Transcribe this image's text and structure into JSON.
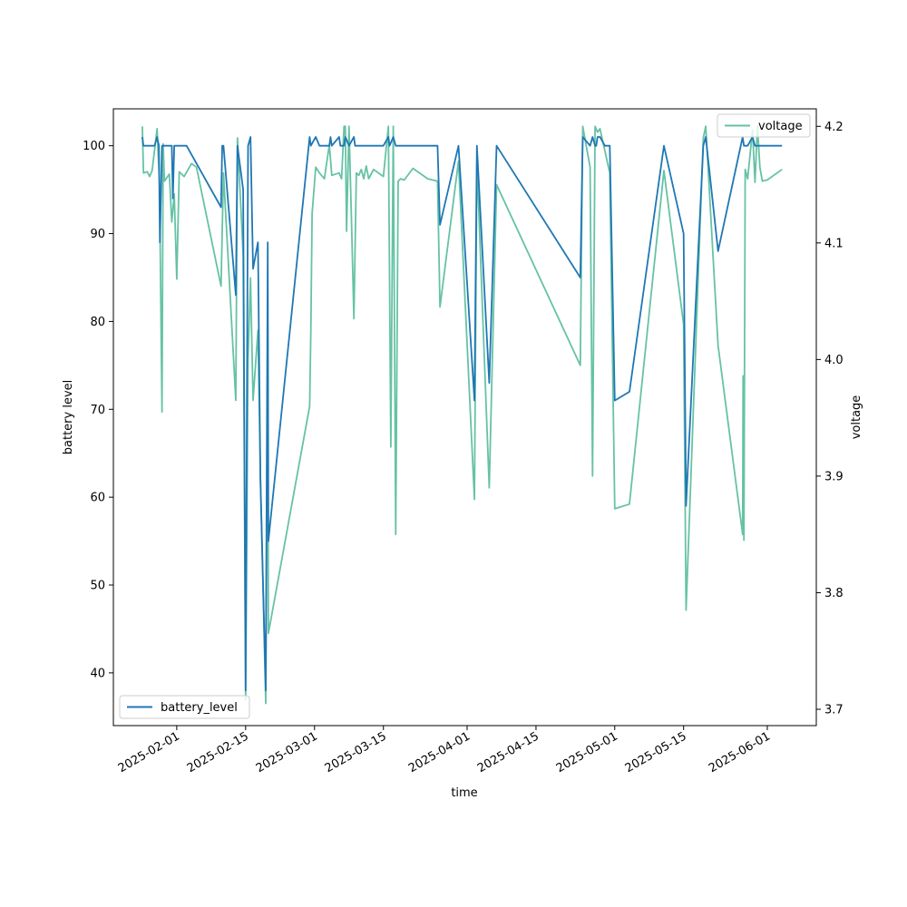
{
  "chart_data": {
    "type": "line",
    "xlabel": "time",
    "ylabel_left": "battery level",
    "ylabel_right": "voltage",
    "x_ticks": [
      "2025-02-01",
      "2025-02-15",
      "2025-03-01",
      "2025-03-15",
      "2025-04-01",
      "2025-04-15",
      "2025-05-01",
      "2025-05-15",
      "2025-06-01"
    ],
    "ylim_left": [
      34,
      104.2
    ],
    "yticks_left": [
      40,
      50,
      60,
      70,
      80,
      90,
      100
    ],
    "ylim_right": [
      3.686,
      4.215
    ],
    "yticks_right": [
      3.7,
      3.8,
      3.9,
      4.0,
      4.1,
      4.2
    ],
    "xlim": [
      "2025-01-19T03:00",
      "2025-06-10T23:00"
    ],
    "grid": false,
    "series": [
      {
        "name": "battery_level",
        "axis": "left",
        "color": "#1f77b4",
        "legend_position": "lower-left",
        "points": [
          [
            "2025-01-25T00:00",
            101
          ],
          [
            "2025-01-25T06:00",
            100
          ],
          [
            "2025-01-26T00:00",
            100
          ],
          [
            "2025-01-27T12:00",
            100
          ],
          [
            "2025-01-28T00:00",
            101
          ],
          [
            "2025-01-28T09:00",
            100
          ],
          [
            "2025-01-28T14:00",
            89
          ],
          [
            "2025-01-29T00:00",
            100
          ],
          [
            "2025-01-30T00:00",
            100
          ],
          [
            "2025-01-31T00:00",
            100
          ],
          [
            "2025-01-31T05:00",
            94
          ],
          [
            "2025-01-31T12:00",
            100
          ],
          [
            "2025-02-02T00:00",
            100
          ],
          [
            "2025-02-02T00:00",
            100
          ],
          [
            "2025-02-03T00:00",
            100
          ],
          [
            "2025-02-10T00:00",
            93
          ],
          [
            "2025-02-10T06:00",
            100
          ],
          [
            "2025-02-10T12:00",
            100
          ],
          [
            "2025-02-13T00:00",
            83
          ],
          [
            "2025-02-13T08:00",
            100
          ],
          [
            "2025-02-14T12:00",
            95
          ],
          [
            "2025-02-15T00:00",
            38
          ],
          [
            "2025-02-15T12:00",
            100
          ],
          [
            "2025-02-16T00:00",
            101
          ],
          [
            "2025-02-16T12:00",
            86
          ],
          [
            "2025-02-17T12:00",
            89
          ],
          [
            "2025-02-18T00:00",
            62
          ],
          [
            "2025-02-19T02:00",
            38
          ],
          [
            "2025-02-19T12:00",
            89
          ],
          [
            "2025-02-19T15:00",
            55
          ],
          [
            "2025-02-28T00:00",
            101
          ],
          [
            "2025-02-28T06:00",
            100
          ],
          [
            "2025-03-01T06:00",
            101
          ],
          [
            "2025-03-02T00:00",
            100
          ],
          [
            "2025-03-04T00:00",
            100
          ],
          [
            "2025-03-04T06:00",
            101
          ],
          [
            "2025-03-04T12:00",
            100
          ],
          [
            "2025-03-06T00:00",
            101
          ],
          [
            "2025-03-06T06:00",
            100
          ],
          [
            "2025-03-07T00:00",
            100
          ],
          [
            "2025-03-07T06:00",
            101
          ],
          [
            "2025-03-08T00:00",
            100
          ],
          [
            "2025-03-09T00:00",
            101
          ],
          [
            "2025-03-09T06:00",
            100
          ],
          [
            "2025-03-12T00:00",
            100
          ],
          [
            "2025-03-15T00:00",
            100
          ],
          [
            "2025-03-16T00:00",
            101
          ],
          [
            "2025-03-16T06:00",
            100
          ],
          [
            "2025-03-17T00:00",
            101
          ],
          [
            "2025-03-17T12:00",
            100
          ],
          [
            "2025-03-18T00:00",
            100
          ],
          [
            "2025-03-26T00:00",
            100
          ],
          [
            "2025-03-26T12:00",
            91
          ],
          [
            "2025-03-30T06:00",
            100
          ],
          [
            "2025-04-02T12:00",
            71
          ],
          [
            "2025-04-03T00:00",
            100
          ],
          [
            "2025-04-05T12:00",
            73
          ],
          [
            "2025-04-07T00:00",
            100
          ],
          [
            "2025-04-24T00:00",
            85
          ],
          [
            "2025-04-24T12:00",
            101
          ],
          [
            "2025-04-26T00:00",
            100
          ],
          [
            "2025-04-26T12:00",
            101
          ],
          [
            "2025-04-27T00:00",
            100
          ],
          [
            "2025-04-27T06:00",
            100
          ],
          [
            "2025-04-27T12:00",
            101
          ],
          [
            "2025-04-28T00:00",
            101
          ],
          [
            "2025-04-29T00:00",
            100
          ],
          [
            "2025-04-30T00:00",
            100
          ],
          [
            "2025-05-01T00:00",
            71
          ],
          [
            "2025-05-04T00:00",
            72
          ],
          [
            "2025-05-11T00:00",
            100
          ],
          [
            "2025-05-15T00:00",
            90
          ],
          [
            "2025-05-15T12:00",
            59
          ],
          [
            "2025-05-19T00:00",
            100
          ],
          [
            "2025-05-19T12:00",
            101
          ],
          [
            "2025-05-22T00:00",
            88
          ],
          [
            "2025-05-27T00:00",
            101
          ],
          [
            "2025-05-27T06:00",
            100
          ],
          [
            "2025-05-28T00:00",
            100
          ],
          [
            "2025-05-29T00:00",
            101
          ],
          [
            "2025-05-29T12:00",
            100
          ],
          [
            "2025-05-30T00:00",
            100
          ],
          [
            "2025-06-04T00:00",
            100
          ]
        ]
      },
      {
        "name": "voltage",
        "axis": "right",
        "color": "#66c2a5",
        "legend_position": "upper-right",
        "points": [
          [
            "2025-01-25T00:00",
            4.2
          ],
          [
            "2025-01-25T06:00",
            4.16
          ],
          [
            "2025-01-26T00:00",
            4.161
          ],
          [
            "2025-01-26T12:00",
            4.157
          ],
          [
            "2025-01-27T00:00",
            4.162
          ],
          [
            "2025-01-28T00:00",
            4.198
          ],
          [
            "2025-01-28T12:00",
            4.15
          ],
          [
            "2025-01-29T00:00",
            3.955
          ],
          [
            "2025-01-29T06:00",
            4.185
          ],
          [
            "2025-01-29T12:00",
            4.153
          ],
          [
            "2025-01-30T00:00",
            4.156
          ],
          [
            "2025-01-30T12:00",
            4.159
          ],
          [
            "2025-01-31T00:00",
            4.118
          ],
          [
            "2025-01-31T12:00",
            4.142
          ],
          [
            "2025-02-01T00:00",
            4.069
          ],
          [
            "2025-02-01T12:00",
            4.161
          ],
          [
            "2025-02-02T12:00",
            4.157
          ],
          [
            "2025-02-04T00:00",
            4.168
          ],
          [
            "2025-02-05T00:00",
            4.165
          ],
          [
            "2025-02-10T00:00",
            4.063
          ],
          [
            "2025-02-10T12:00",
            4.16
          ],
          [
            "2025-02-13T00:00",
            3.965
          ],
          [
            "2025-02-13T08:00",
            4.19
          ],
          [
            "2025-02-14T12:00",
            4.09
          ],
          [
            "2025-02-15T00:00",
            3.708
          ],
          [
            "2025-02-15T12:00",
            4.0
          ],
          [
            "2025-02-16T00:00",
            4.07
          ],
          [
            "2025-02-16T12:00",
            3.965
          ],
          [
            "2025-02-17T12:00",
            4.025
          ],
          [
            "2025-02-18T00:00",
            3.9
          ],
          [
            "2025-02-19T02:00",
            3.705
          ],
          [
            "2025-02-19T12:00",
            4.03
          ],
          [
            "2025-02-19T15:00",
            3.765
          ],
          [
            "2025-02-28T00:00",
            3.96
          ],
          [
            "2025-02-28T06:00",
            4.024
          ],
          [
            "2025-02-28T12:00",
            4.125
          ],
          [
            "2025-03-01T06:00",
            4.165
          ],
          [
            "2025-03-02T00:00",
            4.16
          ],
          [
            "2025-03-03T00:00",
            4.155
          ],
          [
            "2025-03-04T00:00",
            4.184
          ],
          [
            "2025-03-04T12:00",
            4.158
          ],
          [
            "2025-03-06T00:00",
            4.16
          ],
          [
            "2025-03-06T12:00",
            4.155
          ],
          [
            "2025-03-07T00:00",
            4.2
          ],
          [
            "2025-03-07T06:00",
            4.2
          ],
          [
            "2025-03-07T12:00",
            4.11
          ],
          [
            "2025-03-08T00:00",
            4.2
          ],
          [
            "2025-03-08T12:00",
            4.12
          ],
          [
            "2025-03-09T00:00",
            4.035
          ],
          [
            "2025-03-09T12:00",
            4.16
          ],
          [
            "2025-03-10T00:00",
            4.158
          ],
          [
            "2025-03-10T12:00",
            4.163
          ],
          [
            "2025-03-11T00:00",
            4.155
          ],
          [
            "2025-03-11T12:00",
            4.166
          ],
          [
            "2025-03-12T00:00",
            4.155
          ],
          [
            "2025-03-13T00:00",
            4.163
          ],
          [
            "2025-03-15T00:00",
            4.157
          ],
          [
            "2025-03-16T00:00",
            4.2
          ],
          [
            "2025-03-16T12:00",
            3.925
          ],
          [
            "2025-03-17T00:00",
            4.2
          ],
          [
            "2025-03-17T12:00",
            3.85
          ],
          [
            "2025-03-18T00:00",
            4.153
          ],
          [
            "2025-03-18T12:00",
            4.155
          ],
          [
            "2025-03-19T06:00",
            4.154
          ],
          [
            "2025-03-21T00:00",
            4.164
          ],
          [
            "2025-03-24T00:00",
            4.155
          ],
          [
            "2025-03-26T00:00",
            4.153
          ],
          [
            "2025-03-26T12:00",
            4.045
          ],
          [
            "2025-03-30T06:00",
            4.17
          ],
          [
            "2025-04-02T12:00",
            3.88
          ],
          [
            "2025-04-03T00:00",
            4.17
          ],
          [
            "2025-04-05T12:00",
            3.89
          ],
          [
            "2025-04-07T00:00",
            4.15
          ],
          [
            "2025-04-24T00:00",
            3.995
          ],
          [
            "2025-04-24T12:00",
            4.2
          ],
          [
            "2025-04-26T00:00",
            4.165
          ],
          [
            "2025-04-26T12:00",
            3.9
          ],
          [
            "2025-04-27T00:00",
            4.2
          ],
          [
            "2025-04-27T12:00",
            4.195
          ],
          [
            "2025-04-28T00:00",
            4.198
          ],
          [
            "2025-04-30T00:00",
            4.16
          ],
          [
            "2025-05-01T00:00",
            3.872
          ],
          [
            "2025-05-04T00:00",
            3.876
          ],
          [
            "2025-05-11T00:00",
            4.162
          ],
          [
            "2025-05-15T00:00",
            4.03
          ],
          [
            "2025-05-15T12:00",
            3.785
          ],
          [
            "2025-05-19T00:00",
            4.19
          ],
          [
            "2025-05-19T12:00",
            4.2
          ],
          [
            "2025-05-22T00:00",
            4.012
          ],
          [
            "2025-05-27T00:00",
            3.85
          ],
          [
            "2025-05-27T02:00",
            3.986
          ],
          [
            "2025-05-27T06:00",
            3.845
          ],
          [
            "2025-05-27T12:00",
            4.163
          ],
          [
            "2025-05-28T00:00",
            4.155
          ],
          [
            "2025-05-29T00:00",
            4.197
          ],
          [
            "2025-05-29T12:00",
            4.152
          ],
          [
            "2025-05-30T00:00",
            4.2
          ],
          [
            "2025-05-30T12:00",
            4.165
          ],
          [
            "2025-05-31T00:00",
            4.153
          ],
          [
            "2025-06-01T00:00",
            4.154
          ],
          [
            "2025-06-04T00:00",
            4.163
          ]
        ]
      }
    ]
  }
}
